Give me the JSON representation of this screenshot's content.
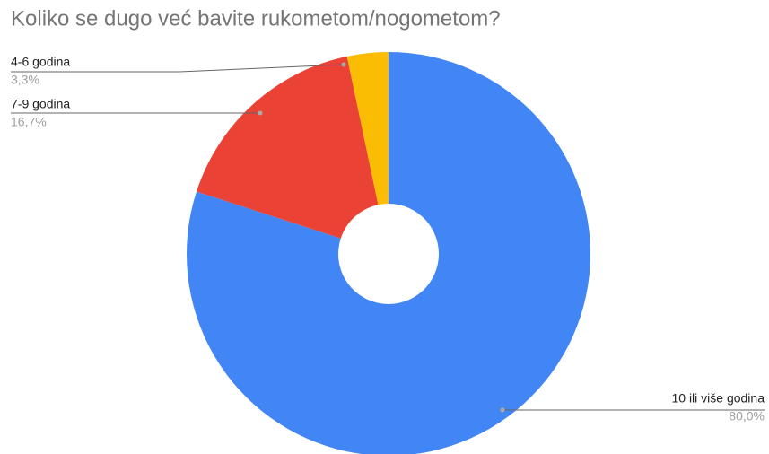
{
  "chart_data": {
    "type": "pie",
    "title": "Koliko se dugo već bavite rukometom/nogometom?",
    "categories": [
      "10 ili više godina",
      "7-9 godina",
      "4-6 godina"
    ],
    "values": [
      80.0,
      16.7,
      3.3
    ],
    "value_labels": [
      "80,0%",
      "16,7%",
      "3,3%"
    ],
    "colors": [
      "#4285f4",
      "#ea4335",
      "#fbbc04"
    ],
    "donut": true
  }
}
